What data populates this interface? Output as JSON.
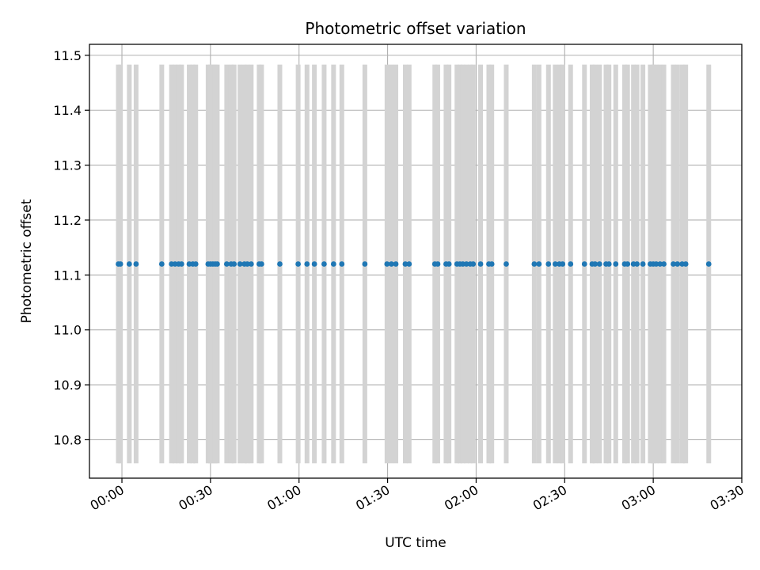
{
  "chart_data": {
    "type": "scatter",
    "title": "Photometric offset variation",
    "xlabel": "UTC time",
    "ylabel": "Photometric offset",
    "x_unit": "minutes after 00:00 UTC",
    "xlim": [
      -11,
      210
    ],
    "ylim": [
      10.73,
      11.52
    ],
    "grid": true,
    "x_tick_values": [
      0,
      30,
      60,
      90,
      120,
      150,
      180,
      210
    ],
    "x_tick_labels": [
      "00:00",
      "00:30",
      "01:00",
      "01:30",
      "02:00",
      "02:30",
      "03:00",
      "03:30"
    ],
    "y_ticks": [
      10.8,
      10.9,
      11.0,
      11.1,
      11.2,
      11.3,
      11.4,
      11.5
    ],
    "y_tick_labels": [
      "10.8",
      "10.9",
      "11.0",
      "11.1",
      "11.2",
      "11.3",
      "11.4",
      "11.5"
    ],
    "errorbar": {
      "color": "#d3d3d3",
      "lower": 10.757,
      "upper": 11.483
    },
    "series": [
      {
        "color": "#1f77b4",
        "y": 11.12,
        "x": [
          -1.2,
          -0.5,
          2.5,
          4.8,
          13.5,
          16.8,
          18.0,
          19.2,
          20.2,
          22.8,
          24.0,
          25.0,
          29.2,
          30.0,
          30.8,
          31.6,
          32.3,
          35.5,
          37.0,
          38.0,
          40.0,
          41.5,
          42.5,
          43.8,
          46.5,
          47.3,
          53.5,
          59.7,
          62.7,
          65.2,
          68.5,
          71.7,
          74.5,
          82.3,
          89.8,
          91.3,
          92.8,
          96.0,
          97.3,
          106.0,
          107.0,
          109.8,
          110.8,
          113.5,
          114.5,
          115.5,
          116.7,
          118.0,
          119.0,
          121.5,
          124.3,
          125.3,
          130.2,
          139.7,
          141.3,
          144.5,
          146.8,
          148.2,
          149.3,
          152.0,
          156.7,
          159.3,
          160.3,
          161.8,
          164.0,
          165.0,
          167.3,
          170.3,
          171.3,
          173.3,
          174.5,
          176.5,
          179.0,
          180.0,
          181.0,
          182.3,
          183.6,
          186.8,
          188.2,
          189.8,
          191.0,
          198.8
        ]
      }
    ]
  }
}
